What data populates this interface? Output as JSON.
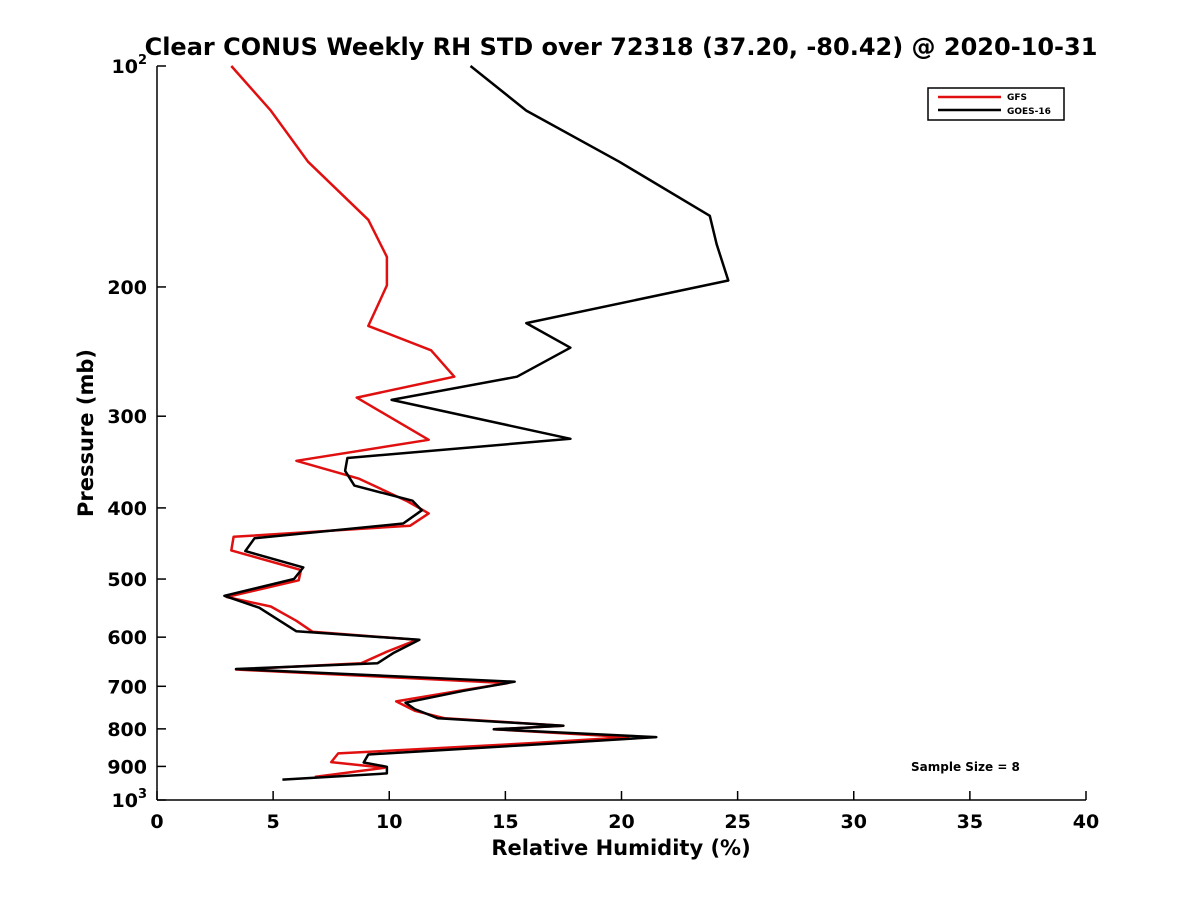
{
  "chart_data": {
    "type": "line",
    "title": "Clear CONUS Weekly RH STD over 72318 (37.20, -80.42) @ 2020-10-31",
    "xlabel": "Relative Humidity (%)",
    "ylabel": "Pressure (mb)",
    "xlim": [
      0,
      40
    ],
    "ylim": [
      100,
      1000
    ],
    "yscale": "log",
    "y_reversed": true,
    "xticks": [
      0,
      5,
      10,
      15,
      20,
      25,
      30,
      35,
      40
    ],
    "xtick_labels": [
      "0",
      "5",
      "10",
      "15",
      "20",
      "25",
      "30",
      "35",
      "40"
    ],
    "yticks": [
      {
        "value": 100,
        "base": "10",
        "exp": "2"
      },
      {
        "value": 200,
        "label": "200"
      },
      {
        "value": 300,
        "label": "300"
      },
      {
        "value": 400,
        "label": "400"
      },
      {
        "value": 500,
        "label": "500"
      },
      {
        "value": 600,
        "label": "600"
      },
      {
        "value": 700,
        "label": "700"
      },
      {
        "value": 800,
        "label": "800"
      },
      {
        "value": 900,
        "label": "900"
      },
      {
        "value": 1000,
        "base": "10",
        "exp": "3"
      }
    ],
    "grid": false,
    "legend_position": "top-right",
    "annotation": "Sample Size = 8",
    "series": [
      {
        "name": "GFS",
        "color": "#e01010",
        "x": [
          3.2,
          4.9,
          6.5,
          9.1,
          9.9,
          9.9,
          9.1,
          11.8,
          12.8,
          8.6,
          11.7,
          6.0,
          8.7,
          10.8,
          11.7,
          10.9,
          3.3,
          3.2,
          6.2,
          6.1,
          3.0,
          4.9,
          6.0,
          6.7,
          11.2,
          9.9,
          8.8,
          3.4,
          15.1,
          13.0,
          10.3,
          11.1,
          12.4,
          17.5,
          14.5,
          20.3,
          16.3,
          7.8,
          7.5,
          9.8,
          6.8
        ],
        "y": [
          100,
          115,
          135,
          162,
          182,
          199,
          226,
          244,
          265,
          283,
          323,
          345,
          365,
          392,
          407,
          423,
          438,
          457,
          486,
          502,
          529,
          545,
          570,
          590,
          605,
          628,
          651,
          664,
          693,
          710,
          734,
          756,
          774,
          792,
          801,
          821,
          836,
          864,
          888,
          904,
          930
        ]
      },
      {
        "name": "GOES-16",
        "color": "#000000",
        "x": [
          13.5,
          15.9,
          19.9,
          23.8,
          24.1,
          24.6,
          15.9,
          17.8,
          15.5,
          10.1,
          17.8,
          8.2,
          8.1,
          8.5,
          11.0,
          11.4,
          10.6,
          4.2,
          3.8,
          6.3,
          5.9,
          2.9,
          4.4,
          6.0,
          11.3,
          10.2,
          9.5,
          3.4,
          15.4,
          13.2,
          10.7,
          11.1,
          12.1,
          17.5,
          14.5,
          21.5,
          15.8,
          9.1,
          8.9,
          9.9,
          9.9,
          5.4
        ],
        "y": [
          100,
          115,
          135,
          160,
          175,
          196,
          224,
          242,
          265,
          285,
          322,
          342,
          356,
          373,
          391,
          403,
          420,
          440,
          458,
          482,
          500,
          527,
          547,
          589,
          605,
          630,
          651,
          663,
          690,
          710,
          737,
          752,
          774,
          792,
          801,
          821,
          842,
          867,
          889,
          901,
          920,
          938
        ]
      }
    ]
  }
}
